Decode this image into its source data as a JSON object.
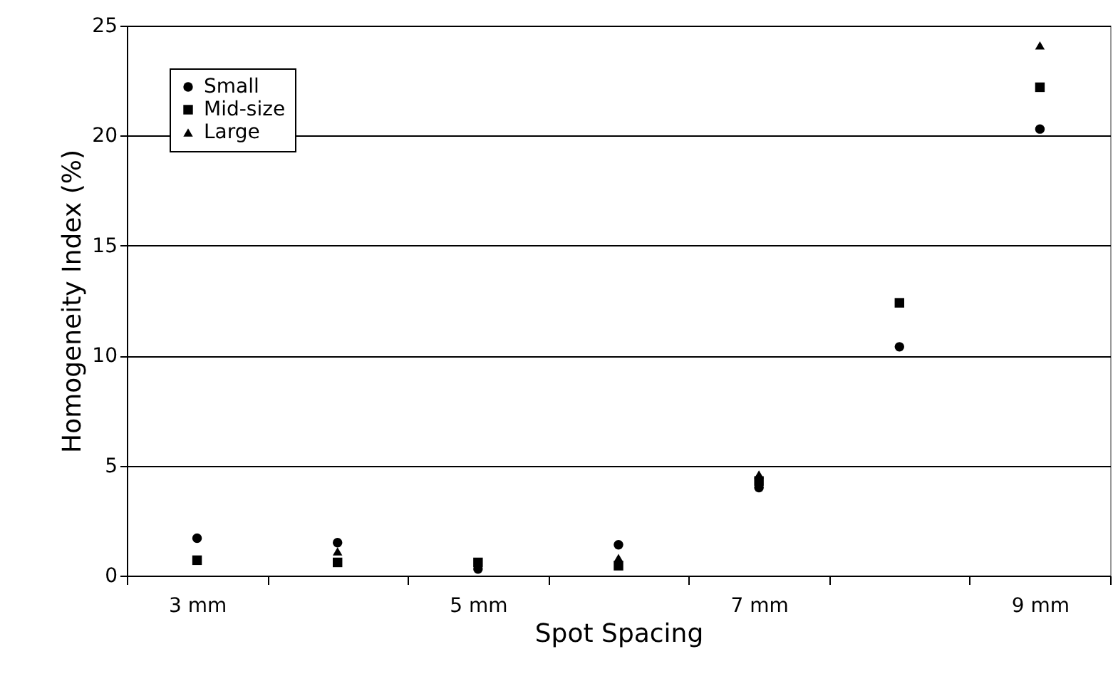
{
  "chart_data": {
    "type": "scatter",
    "xlabel": "Spot Spacing",
    "ylabel": "Homogeneity Index (%)",
    "categories": [
      "3 mm",
      null,
      "5 mm",
      null,
      "7 mm",
      null,
      "9 mm"
    ],
    "series": [
      {
        "name": "Small",
        "color": "#000000",
        "marker": "circle",
        "values": [
          1.7,
          1.5,
          0.3,
          1.4,
          4.0,
          10.4,
          20.3
        ]
      },
      {
        "name": "Mid-size",
        "color": "#000000",
        "marker": "square",
        "values": [
          0.7,
          0.6,
          0.6,
          0.45,
          4.3,
          12.4,
          22.2
        ]
      },
      {
        "name": "Large",
        "color": "#000000",
        "marker": "triangle",
        "values": [
          null,
          1.1,
          null,
          0.8,
          4.6,
          null,
          24.1
        ]
      }
    ],
    "ylim": [
      0,
      25
    ],
    "yticks": [
      0,
      5,
      10,
      15,
      20,
      25
    ],
    "grid": "y",
    "legend": "top left"
  }
}
